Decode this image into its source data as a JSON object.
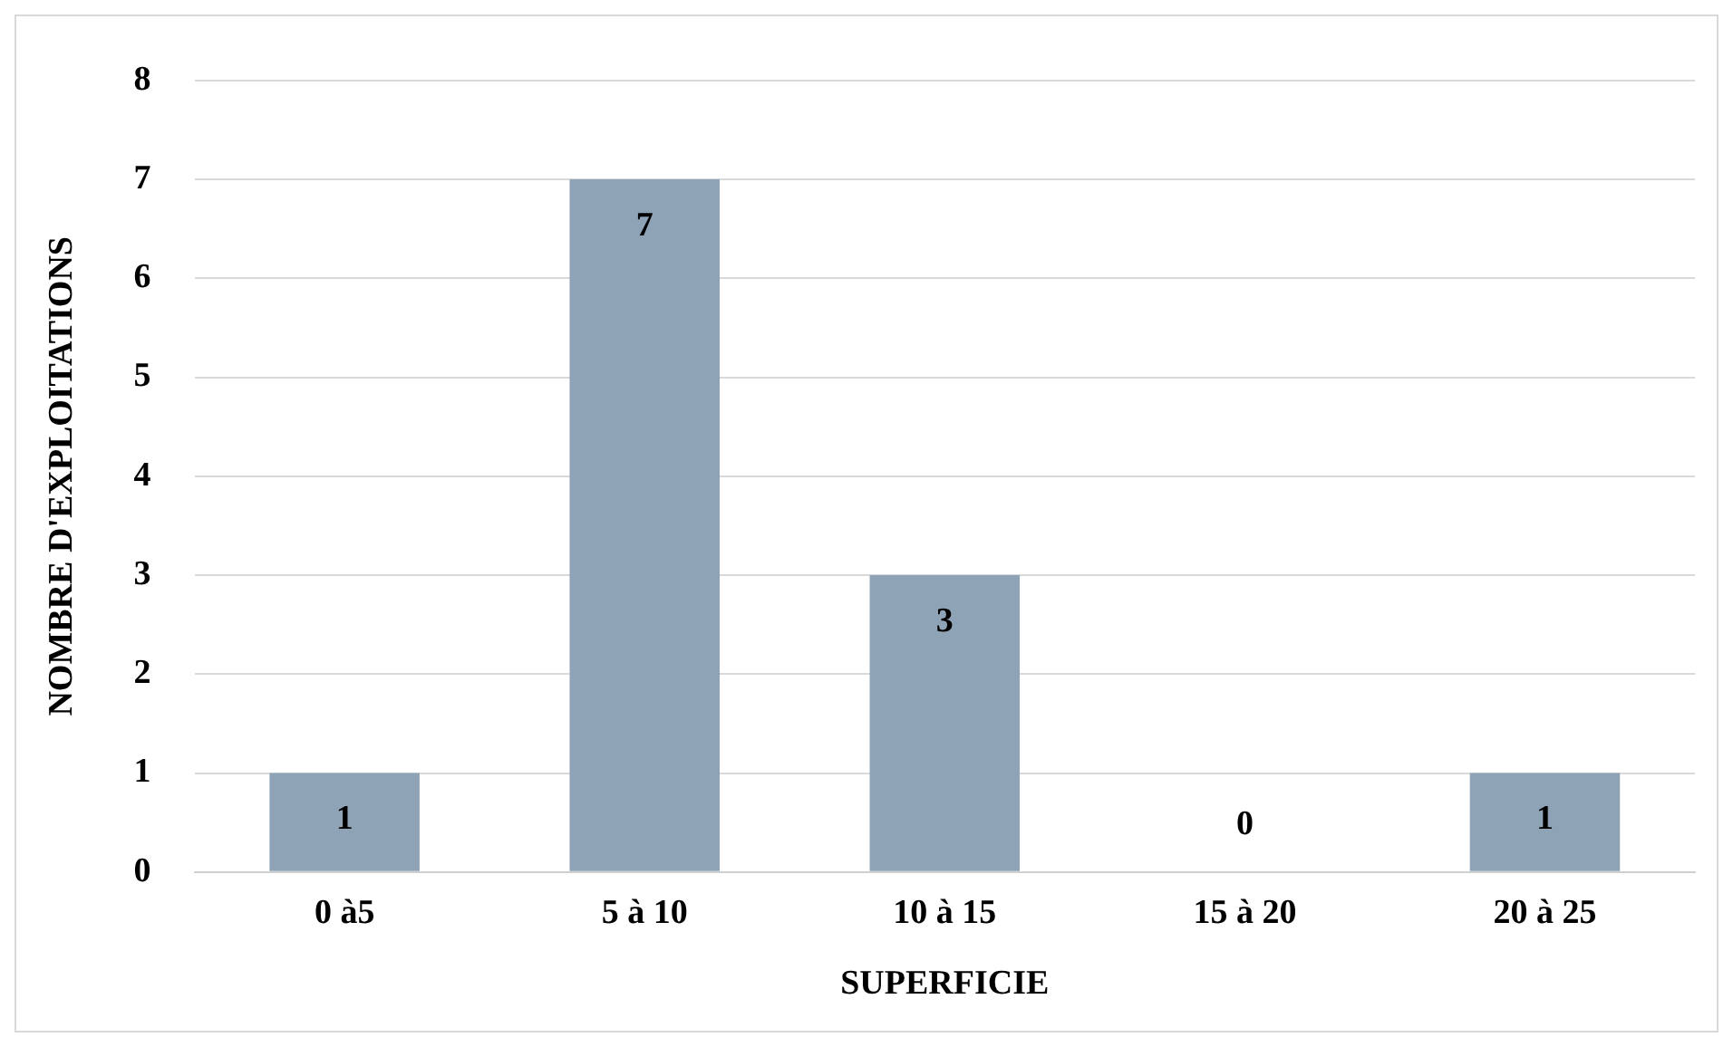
{
  "chart_data": {
    "type": "bar",
    "xlabel": "SUPERFICIE",
    "ylabel": "NOMBRE D'EXPLOITATIONS",
    "categories": [
      "0 à5",
      "5 à 10",
      "10 à 15",
      "15 à 20",
      "20 à 25"
    ],
    "values": [
      1,
      7,
      3,
      0,
      1
    ],
    "color": "#8ea3b6",
    "ylim": [
      0,
      8
    ],
    "yticks": [
      0,
      1,
      2,
      3,
      4,
      5,
      6,
      7,
      8
    ],
    "grid": "y",
    "data_labels": true,
    "legend": false
  }
}
